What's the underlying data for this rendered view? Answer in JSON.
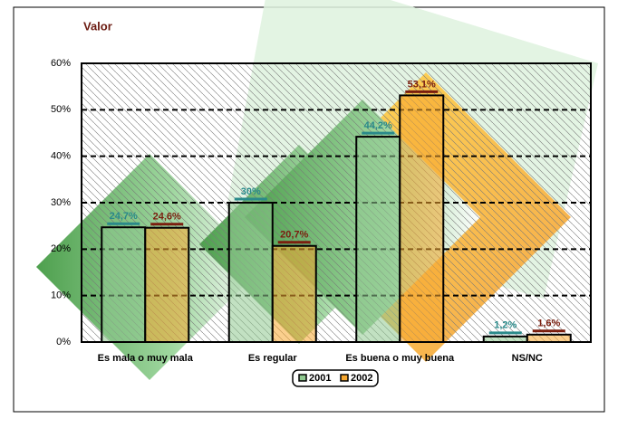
{
  "chart_data": {
    "type": "bar",
    "title": "Valor",
    "categories": [
      "Es mala o muy mala",
      "Es regular",
      "Es buena o muy buena",
      "NS/NC"
    ],
    "series": [
      {
        "name": "2001",
        "color": "#8fc98f",
        "label_color": "#2a8a8a",
        "values": [
          24.7,
          30,
          44.2,
          1.2
        ],
        "value_labels": [
          "24,7%",
          "30%",
          "44,2%",
          "1,2%"
        ]
      },
      {
        "name": "2002",
        "color": "#f7a830",
        "label_color": "#7b1e0e",
        "values": [
          24.6,
          20.7,
          53.1,
          1.6
        ],
        "value_labels": [
          "24,6%",
          "20,7%",
          "53,1%",
          "1,6%"
        ]
      }
    ],
    "ylim": [
      0,
      60
    ],
    "yticks": [
      {
        "value": 0,
        "label": "0%"
      },
      {
        "value": 10,
        "label": "10%"
      },
      {
        "value": 20,
        "label": "20%"
      },
      {
        "value": 30,
        "label": "30%"
      },
      {
        "value": 40,
        "label": "40%"
      },
      {
        "value": 50,
        "label": "50%"
      },
      {
        "value": 60,
        "label": "60%"
      }
    ],
    "grid": true
  }
}
